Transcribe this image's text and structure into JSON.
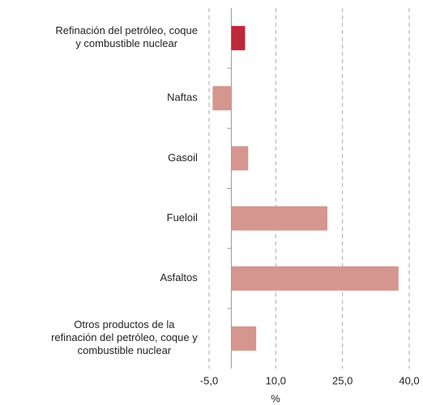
{
  "chart_data": {
    "type": "barh",
    "categories": [
      "Refinación del petróleo, coque\ny combustible nuclear",
      "Naftas",
      "Gasoil",
      "Fueloil",
      "Asfaltos",
      "Otros productos de la\nrefinación del petróleo, coque y\ncombustible nuclear"
    ],
    "values": [
      3.1,
      -4.2,
      3.8,
      21.6,
      37.6,
      5.6
    ],
    "colors": [
      "#c0283c",
      "#d4968e",
      "#d4968e",
      "#d4968e",
      "#d4968e",
      "#d4968e"
    ],
    "xlim": [
      -5,
      40
    ],
    "xticks": [
      {
        "value": -5,
        "label": "-5,0"
      },
      {
        "value": 10,
        "label": "10,0"
      },
      {
        "value": 25,
        "label": "25,0"
      },
      {
        "value": 40,
        "label": "40,0"
      }
    ],
    "xlabel": "%",
    "grid": true
  }
}
